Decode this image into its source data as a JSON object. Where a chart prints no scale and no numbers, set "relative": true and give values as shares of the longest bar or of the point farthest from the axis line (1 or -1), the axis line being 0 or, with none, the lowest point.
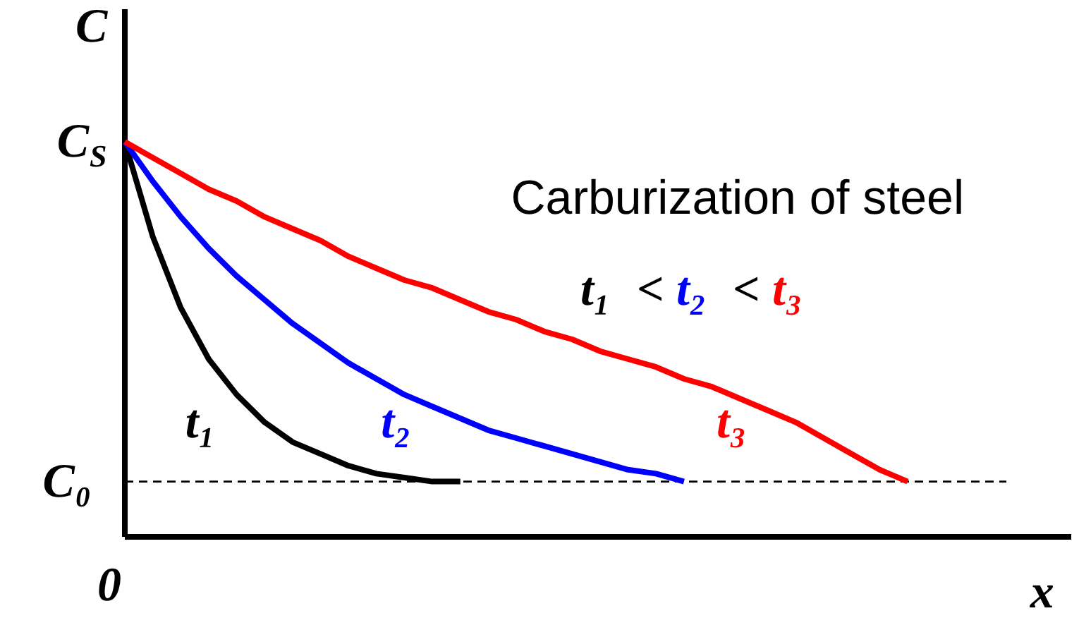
{
  "chart_data": {
    "type": "line",
    "relative": true,
    "title": "Carburization of steel",
    "xlabel": "x",
    "ylabel": "C",
    "categories": [
      null,
      null,
      null,
      null,
      null,
      null,
      null,
      null,
      null,
      null,
      null,
      null,
      null,
      null,
      null,
      null,
      null,
      null,
      null,
      null,
      null,
      null,
      null,
      null,
      null,
      null,
      null,
      null,
      null
    ],
    "series": [
      {
        "name": "t₁",
        "color": "#000000",
        "values": [
          1,
          0.76,
          0.58,
          0.45,
          0.36,
          0.29,
          0.24,
          0.21,
          0.18,
          0.16,
          0.15,
          0.14,
          0.14,
          null,
          null,
          null,
          null,
          null,
          null,
          null,
          null,
          null,
          null,
          null,
          null,
          null,
          null,
          null,
          null
        ]
      },
      {
        "name": "t₂",
        "color": "#0000ff",
        "values": [
          1,
          0.9,
          0.81,
          0.73,
          0.66,
          0.6,
          0.54,
          0.49,
          0.44,
          0.4,
          0.36,
          0.33,
          0.3,
          0.27,
          0.25,
          0.23,
          0.21,
          0.19,
          0.17,
          0.16,
          0.14,
          null,
          null,
          null,
          null,
          null,
          null,
          null,
          null
        ]
      },
      {
        "name": "t₃",
        "color": "#ff0000",
        "values": [
          1,
          0.96,
          0.92,
          0.88,
          0.85,
          0.81,
          0.78,
          0.75,
          0.71,
          0.68,
          0.65,
          0.63,
          0.6,
          0.57,
          0.55,
          0.52,
          0.5,
          0.47,
          0.45,
          0.43,
          0.4,
          0.38,
          0.35,
          0.32,
          0.29,
          0.25,
          0.21,
          0.17,
          0.14
        ]
      }
    ],
    "ref_lines": [
      {
        "axis": "y",
        "value": 0.14,
        "label": "C₀",
        "color": "#000000",
        "line_style": "dashed"
      }
    ],
    "annotations": [
      "t₁ < t₂ < t₃",
      "C$_{S}$",
      "0"
    ],
    "grid": false,
    "legend": false,
    "marker": "none",
    "line_style": "solid"
  }
}
